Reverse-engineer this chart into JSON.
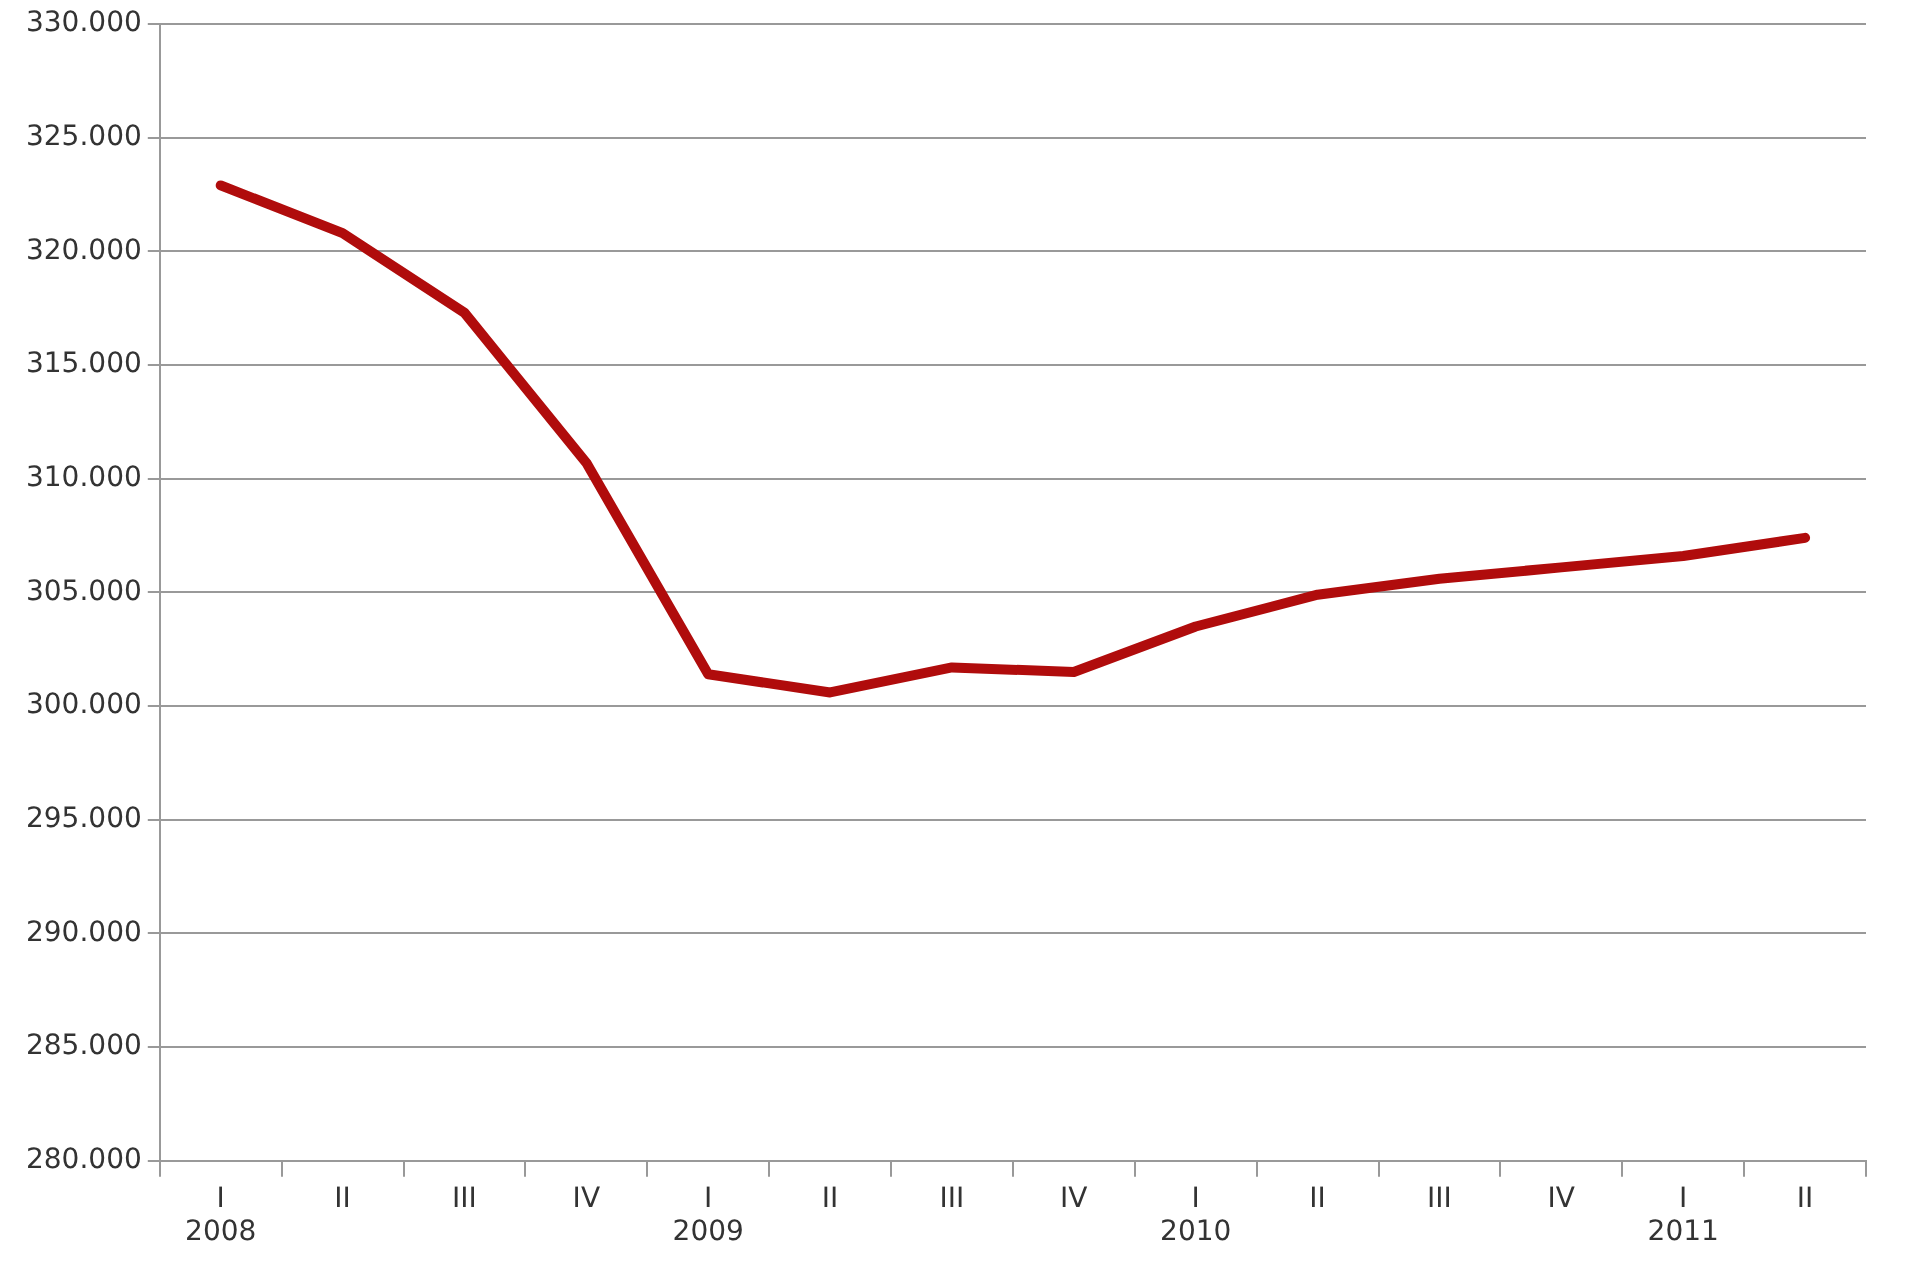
{
  "chart_data": {
    "type": "line",
    "categories": [
      "I\n2008",
      "II",
      "III",
      "IV",
      "I\n2009",
      "II",
      "III",
      "IV",
      "I\n2010",
      "II",
      "III",
      "IV",
      "I\n2011",
      "II"
    ],
    "series": [
      {
        "color": "#b00c0c",
        "values": [
          322.9,
          320.8,
          317.3,
          310.7,
          301.4,
          300.6,
          301.7,
          301.5,
          303.5,
          304.9,
          305.6,
          306.1,
          306.6,
          307.4
        ]
      }
    ],
    "ylim": [
      280,
      330
    ],
    "yticks": [
      {
        "value": 280,
        "label": "280.000"
      },
      {
        "value": 285,
        "label": "285.000"
      },
      {
        "value": 290,
        "label": "290.000"
      },
      {
        "value": 295,
        "label": "295.000"
      },
      {
        "value": 300,
        "label": "300.000"
      },
      {
        "value": 305,
        "label": "305.000"
      },
      {
        "value": 310,
        "label": "310.000"
      },
      {
        "value": 315,
        "label": "315.000"
      },
      {
        "value": 320,
        "label": "320.000"
      },
      {
        "value": 325,
        "label": "325.000"
      },
      {
        "value": 330,
        "label": "330.000"
      }
    ],
    "grid": "y",
    "legend": false,
    "marker": "none",
    "line_style": "solid"
  }
}
